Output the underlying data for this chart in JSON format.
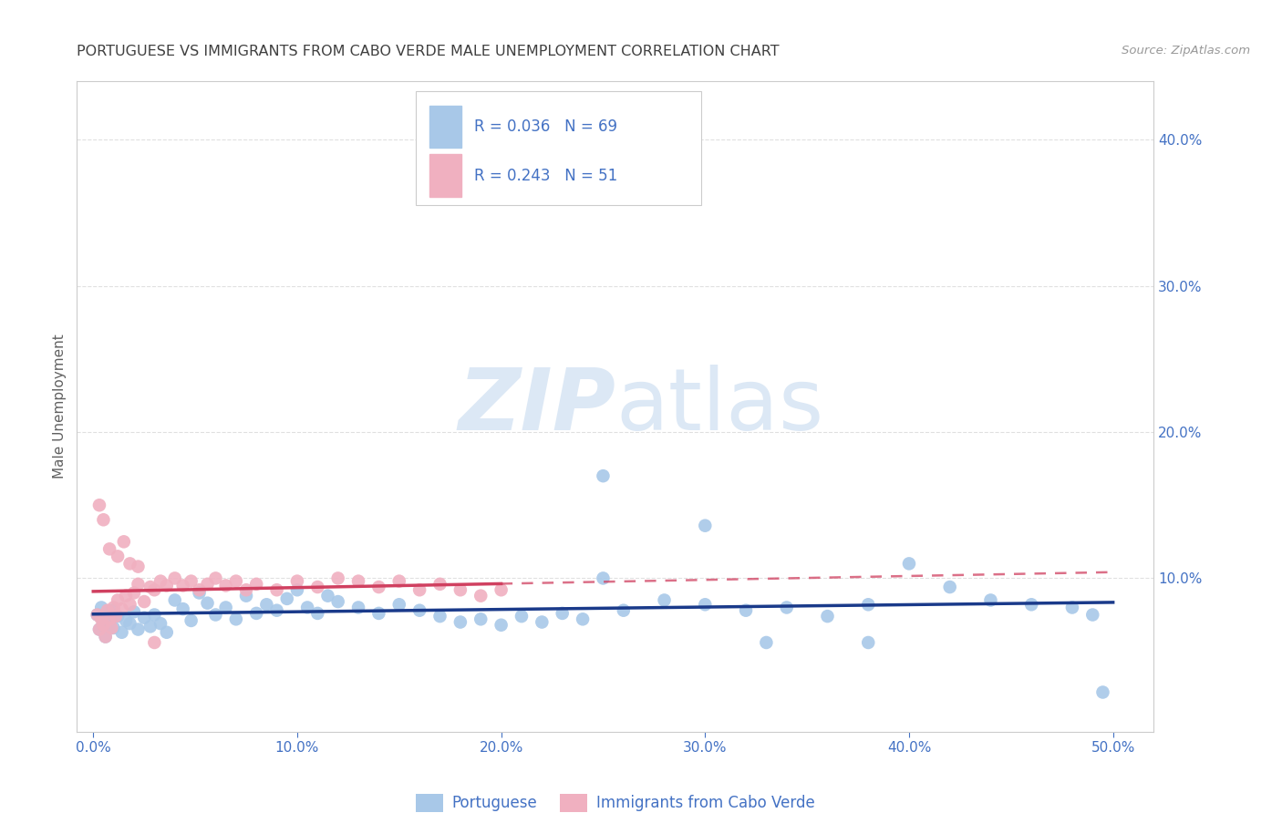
{
  "title": "PORTUGUESE VS IMMIGRANTS FROM CABO VERDE MALE UNEMPLOYMENT CORRELATION CHART",
  "source": "Source: ZipAtlas.com",
  "ylabel": "Male Unemployment",
  "blue_color": "#a8c8e8",
  "pink_color": "#f0b0c0",
  "blue_line_color": "#1a3a8a",
  "pink_line_color": "#d04060",
  "watermark_zip": "ZIP",
  "watermark_atlas": "atlas",
  "watermark_color": "#dce8f5",
  "title_color": "#404040",
  "axis_label_color": "#4472c4",
  "grid_color": "#e0e0e0",
  "legend_border_color": "#cccccc",
  "r_blue": 0.036,
  "n_blue": 69,
  "r_pink": 0.243,
  "n_pink": 51,
  "xlim": [
    0.0,
    0.52
  ],
  "ylim": [
    -0.005,
    0.44
  ],
  "xtick_vals": [
    0.0,
    0.1,
    0.2,
    0.3,
    0.4,
    0.5
  ],
  "ytick_vals": [
    0.1,
    0.2,
    0.3,
    0.4
  ],
  "blue_x": [
    0.002,
    0.003,
    0.004,
    0.005,
    0.006,
    0.007,
    0.008,
    0.009,
    0.01,
    0.012,
    0.014,
    0.016,
    0.018,
    0.02,
    0.022,
    0.025,
    0.028,
    0.03,
    0.033,
    0.036,
    0.04,
    0.044,
    0.048,
    0.052,
    0.056,
    0.06,
    0.065,
    0.07,
    0.075,
    0.08,
    0.085,
    0.09,
    0.095,
    0.1,
    0.105,
    0.11,
    0.115,
    0.12,
    0.13,
    0.14,
    0.15,
    0.16,
    0.17,
    0.18,
    0.19,
    0.2,
    0.21,
    0.22,
    0.23,
    0.24,
    0.25,
    0.26,
    0.28,
    0.3,
    0.32,
    0.34,
    0.36,
    0.38,
    0.4,
    0.42,
    0.44,
    0.46,
    0.48,
    0.49,
    0.495,
    0.3,
    0.25,
    0.33,
    0.38
  ],
  "blue_y": [
    0.075,
    0.065,
    0.08,
    0.07,
    0.06,
    0.072,
    0.068,
    0.078,
    0.066,
    0.074,
    0.063,
    0.071,
    0.069,
    0.077,
    0.065,
    0.073,
    0.067,
    0.075,
    0.069,
    0.063,
    0.085,
    0.079,
    0.071,
    0.09,
    0.083,
    0.075,
    0.08,
    0.072,
    0.088,
    0.076,
    0.082,
    0.078,
    0.086,
    0.092,
    0.08,
    0.076,
    0.088,
    0.084,
    0.08,
    0.076,
    0.082,
    0.078,
    0.074,
    0.07,
    0.072,
    0.068,
    0.074,
    0.07,
    0.076,
    0.072,
    0.17,
    0.078,
    0.085,
    0.136,
    0.078,
    0.08,
    0.074,
    0.082,
    0.11,
    0.094,
    0.085,
    0.082,
    0.08,
    0.075,
    0.022,
    0.082,
    0.1,
    0.056,
    0.056
  ],
  "pink_x": [
    0.002,
    0.003,
    0.004,
    0.005,
    0.006,
    0.007,
    0.008,
    0.009,
    0.01,
    0.011,
    0.012,
    0.014,
    0.016,
    0.018,
    0.02,
    0.022,
    0.025,
    0.028,
    0.03,
    0.033,
    0.036,
    0.04,
    0.044,
    0.048,
    0.052,
    0.056,
    0.06,
    0.065,
    0.07,
    0.075,
    0.08,
    0.09,
    0.1,
    0.11,
    0.12,
    0.13,
    0.14,
    0.15,
    0.16,
    0.17,
    0.18,
    0.19,
    0.2,
    0.003,
    0.005,
    0.008,
    0.012,
    0.015,
    0.018,
    0.022,
    0.03
  ],
  "pink_y": [
    0.075,
    0.065,
    0.072,
    0.068,
    0.06,
    0.078,
    0.072,
    0.066,
    0.08,
    0.074,
    0.085,
    0.079,
    0.088,
    0.082,
    0.09,
    0.096,
    0.084,
    0.094,
    0.092,
    0.098,
    0.095,
    0.1,
    0.095,
    0.098,
    0.092,
    0.096,
    0.1,
    0.095,
    0.098,
    0.092,
    0.096,
    0.092,
    0.098,
    0.094,
    0.1,
    0.098,
    0.094,
    0.098,
    0.092,
    0.096,
    0.092,
    0.088,
    0.092,
    0.15,
    0.14,
    0.12,
    0.115,
    0.125,
    0.11,
    0.108,
    0.056
  ]
}
